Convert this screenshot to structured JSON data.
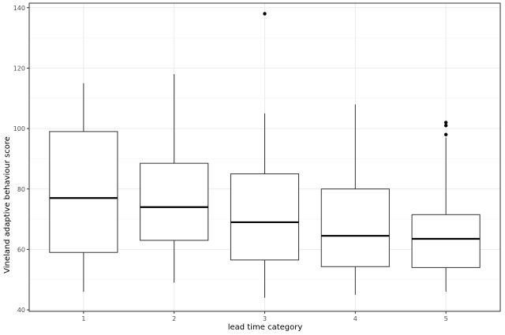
{
  "chart_data": {
    "type": "boxplot",
    "xlabel": "lead time category",
    "ylabel": "Vineland adaptive behaviour score",
    "categories": [
      "1",
      "2",
      "3",
      "4",
      "5"
    ],
    "ylim": [
      39.5,
      141.5
    ],
    "y_ticks": [
      40,
      60,
      80,
      100,
      120,
      140
    ],
    "grid": true,
    "boxes": [
      {
        "category": "1",
        "whisker_low": 46,
        "q1": 59,
        "median": 77,
        "q3": 99,
        "whisker_high": 115,
        "outliers": []
      },
      {
        "category": "2",
        "whisker_low": 49,
        "q1": 63,
        "median": 74,
        "q3": 88.5,
        "whisker_high": 118,
        "outliers": []
      },
      {
        "category": "3",
        "whisker_low": 44,
        "q1": 56.5,
        "median": 69,
        "q3": 85,
        "whisker_high": 105,
        "outliers": [
          138
        ]
      },
      {
        "category": "4",
        "whisker_low": 45,
        "q1": 54.3,
        "median": 64.5,
        "q3": 80,
        "whisker_high": 108,
        "outliers": []
      },
      {
        "category": "5",
        "whisker_low": 46,
        "q1": 54,
        "median": 63.5,
        "q3": 71.5,
        "whisker_high": 97,
        "outliers": [
          98,
          101,
          102
        ]
      }
    ]
  }
}
